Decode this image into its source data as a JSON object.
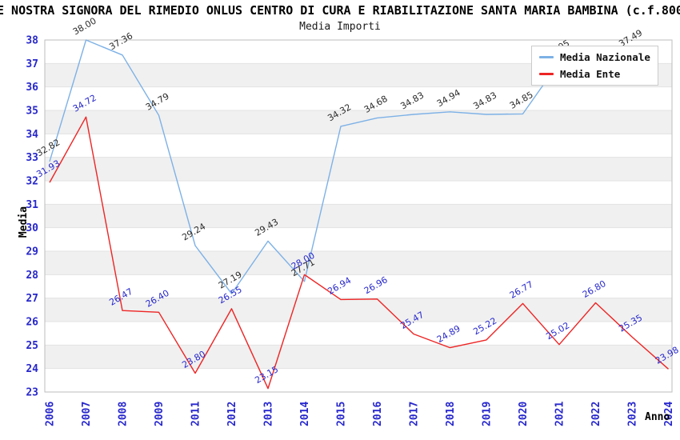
{
  "chart_data": {
    "type": "line",
    "suptitle": "E NOSTRA SIGNORA DEL RIMEDIO ONLUS CENTRO DI CURA E RIABILITAZIONE SANTA MARIA BAMBINA (c.f.800",
    "title": "Media Importi",
    "xlabel": "Anno",
    "ylabel": "Media",
    "ylim": [
      23,
      38
    ],
    "y_ticks": [
      23,
      24,
      25,
      26,
      27,
      28,
      29,
      30,
      31,
      32,
      33,
      34,
      35,
      36,
      37,
      38
    ],
    "categories": [
      "2006",
      "2007",
      "2008",
      "2009",
      "2011",
      "2012",
      "2013",
      "2014",
      "2015",
      "2016",
      "2017",
      "2018",
      "2019",
      "2020",
      "2021",
      "2022",
      "2023",
      "2024"
    ],
    "series": [
      {
        "name": "Media Nazionale",
        "color": "#7db1e6",
        "label_color": "#2b2b2b",
        "values": [
          32.82,
          38.0,
          37.36,
          34.79,
          29.24,
          27.19,
          29.43,
          27.71,
          34.32,
          34.68,
          34.83,
          34.94,
          34.83,
          34.85,
          37.05,
          null,
          37.49,
          null
        ]
      },
      {
        "name": "Media Ente",
        "color": "#ee2424",
        "label_color": "#2727cd",
        "values": [
          31.93,
          34.72,
          26.47,
          26.4,
          23.8,
          26.55,
          23.15,
          28.0,
          26.94,
          26.96,
          25.47,
          24.89,
          25.22,
          26.77,
          25.02,
          26.8,
          25.35,
          23.98
        ]
      }
    ],
    "legend_position": "top-right",
    "grid": "horizontal-stripes"
  },
  "colors": {
    "tick_text": "#2727cd",
    "band": "#f0f0f0",
    "grid": "#e2e2e2",
    "border": "#bdbdbd",
    "background": "#ffffff"
  }
}
